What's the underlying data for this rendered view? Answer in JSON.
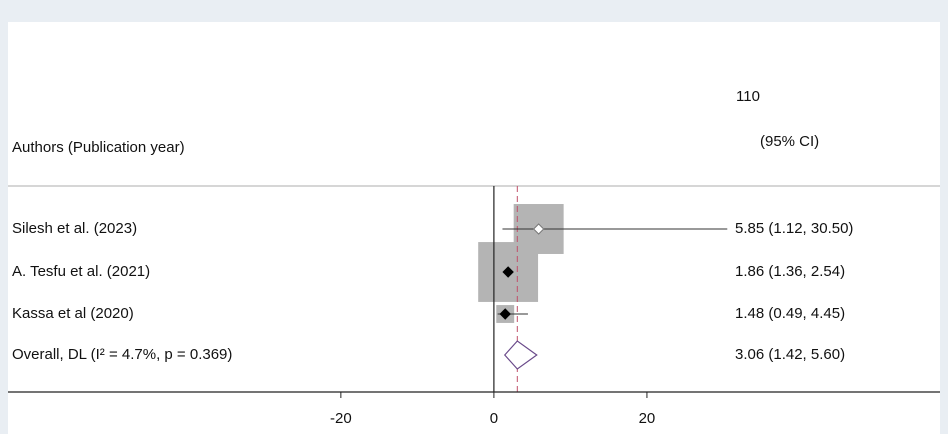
{
  "chart_data": {
    "type": "forest",
    "header_label": "Authors (Publication year)",
    "header_stat_top": "110",
    "header_stat": "(95% CI)",
    "categories": [
      "Silesh et al.  (2023)",
      "A. Tesfu et al. (2021)",
      "Kassa  et al (2020)"
    ],
    "values": [
      5.85,
      1.86,
      1.48
    ],
    "lower": [
      1.12,
      1.36,
      0.49
    ],
    "upper": [
      30.5,
      2.54,
      4.45
    ],
    "value_labels": [
      "5.85 (1.12, 30.50)",
      "1.86 (1.36, 2.54)",
      "1.48 (0.49, 4.45)"
    ],
    "weights": [
      39,
      56,
      5
    ],
    "marker_styles": [
      "hollow",
      "filled",
      "filled"
    ],
    "overall": {
      "label": "Overall, DL (I² = 4.7%, p = 0.369)",
      "value": 3.06,
      "lower": 1.42,
      "upper": 5.6,
      "value_label": "3.06 (1.42, 5.60)"
    },
    "xlim": [
      -63.5,
      58.3
    ],
    "xticks": [
      -20,
      0,
      20
    ],
    "box_color": "#b4b4b4",
    "overall_color": "#6a4a8a",
    "reference_color": "#c0506a"
  }
}
